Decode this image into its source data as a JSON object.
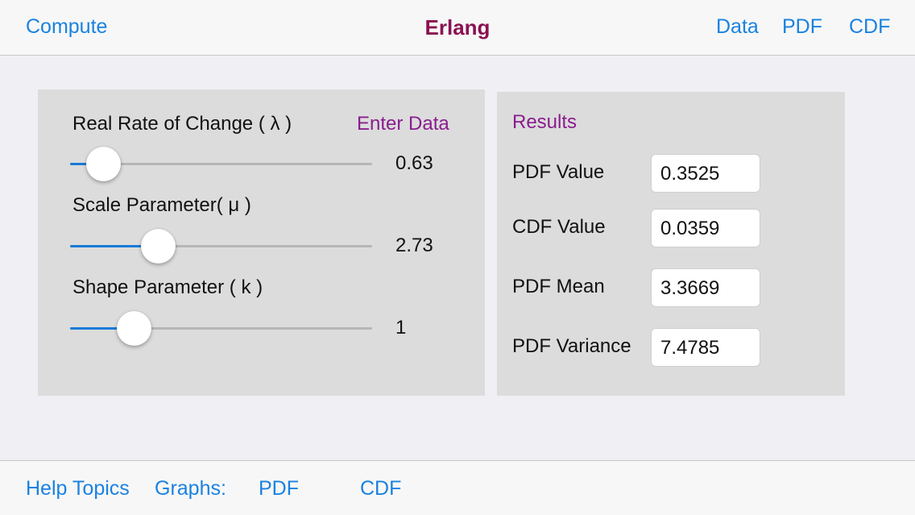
{
  "navbar": {
    "left_button": "Compute",
    "title": "Erlang",
    "right_buttons": [
      "Data",
      "PDF",
      "CDF"
    ]
  },
  "input_panel": {
    "enter_data_label": "Enter Data",
    "sliders": [
      {
        "label": "Real Rate of Change ( λ )",
        "value_text": "0.63",
        "fill_fraction": 0.11
      },
      {
        "label": "Scale Parameter(  μ )",
        "value_text": "2.73",
        "fill_fraction": 0.29
      },
      {
        "label": "Shape Parameter ( k )",
        "value_text": "1",
        "fill_fraction": 0.21
      }
    ]
  },
  "results_panel": {
    "title": "Results",
    "rows": [
      {
        "label": "PDF Value",
        "value": "0.3525"
      },
      {
        "label": "CDF Value",
        "value": "0.0359"
      },
      {
        "label": "PDF Mean",
        "value": "3.3669"
      },
      {
        "label": "PDF Variance",
        "value": "7.4785"
      }
    ]
  },
  "toolbar": {
    "help_topics": "Help Topics",
    "graphs_label": "Graphs:",
    "pdf": "PDF",
    "cdf": "CDF"
  },
  "colors": {
    "accent_blue": "#1a82e0",
    "title_maroon": "#8a1252",
    "label_purple": "#8a1d8e",
    "slider_fill": "#1a7bd8"
  }
}
